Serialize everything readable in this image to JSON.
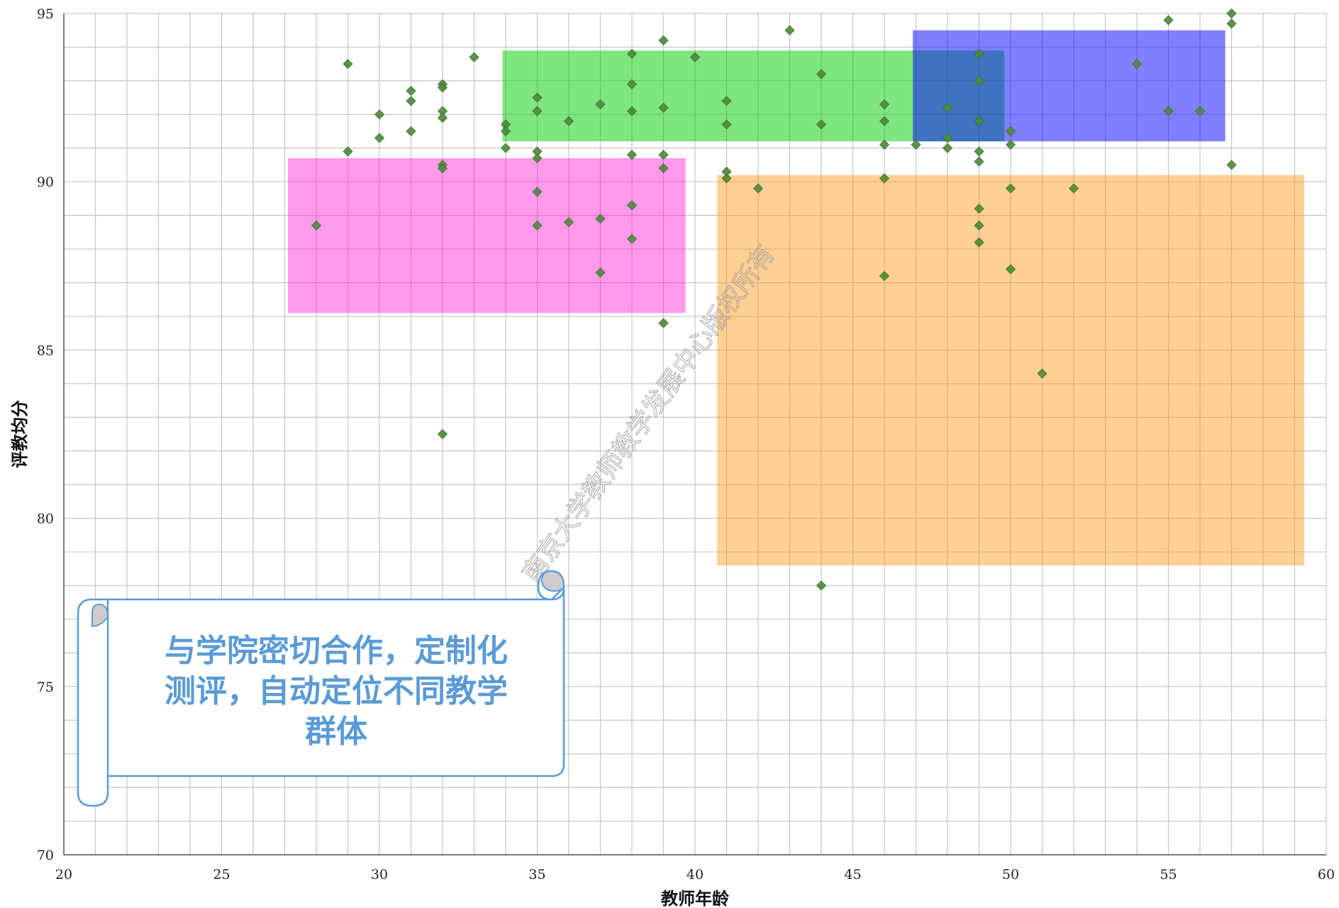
{
  "chart_data": {
    "type": "scatter",
    "title": "",
    "xlabel": "教师年龄",
    "ylabel": "评教均分",
    "xlim": [
      20,
      60
    ],
    "ylim": [
      70,
      95
    ],
    "x_ticks": [
      20,
      25,
      30,
      35,
      40,
      45,
      50,
      55,
      60
    ],
    "y_ticks": [
      70,
      75,
      80,
      85,
      90,
      95
    ],
    "x_minor_step": 1,
    "y_minor_step": 1,
    "grid": true,
    "marker": "diamond",
    "marker_color": "#4f8a3c",
    "points": [
      [
        28,
        88.7
      ],
      [
        29,
        93.5
      ],
      [
        29,
        90.9
      ],
      [
        30,
        92.0
      ],
      [
        30,
        91.3
      ],
      [
        31,
        92.7
      ],
      [
        31,
        92.4
      ],
      [
        31,
        91.5
      ],
      [
        32,
        92.9
      ],
      [
        32,
        92.8
      ],
      [
        32,
        92.1
      ],
      [
        32,
        91.9
      ],
      [
        32,
        90.5
      ],
      [
        32,
        90.4
      ],
      [
        32,
        82.5
      ],
      [
        33,
        93.7
      ],
      [
        34,
        91.7
      ],
      [
        34,
        91.5
      ],
      [
        34,
        91.0
      ],
      [
        35,
        92.5
      ],
      [
        35,
        92.1
      ],
      [
        35,
        90.9
      ],
      [
        35,
        90.7
      ],
      [
        35,
        89.7
      ],
      [
        35,
        88.7
      ],
      [
        36,
        91.8
      ],
      [
        36,
        88.8
      ],
      [
        37,
        92.3
      ],
      [
        37,
        88.9
      ],
      [
        37,
        87.3
      ],
      [
        38,
        93.8
      ],
      [
        38,
        92.9
      ],
      [
        38,
        92.1
      ],
      [
        38,
        90.8
      ],
      [
        38,
        89.3
      ],
      [
        38,
        88.3
      ],
      [
        39,
        94.2
      ],
      [
        39,
        92.2
      ],
      [
        39,
        90.8
      ],
      [
        39,
        90.4
      ],
      [
        39,
        85.8
      ],
      [
        40,
        93.7
      ],
      [
        41,
        92.4
      ],
      [
        41,
        91.7
      ],
      [
        41,
        90.3
      ],
      [
        41,
        90.1
      ],
      [
        42,
        89.8
      ],
      [
        43,
        94.5
      ],
      [
        44,
        93.2
      ],
      [
        44,
        91.7
      ],
      [
        44,
        78.0
      ],
      [
        46,
        92.3
      ],
      [
        46,
        91.8
      ],
      [
        46,
        91.1
      ],
      [
        46,
        90.1
      ],
      [
        46,
        87.2
      ],
      [
        47,
        91.1
      ],
      [
        48,
        92.2
      ],
      [
        48,
        91.3
      ],
      [
        48,
        91.0
      ],
      [
        49,
        93.8
      ],
      [
        49,
        93.0
      ],
      [
        49,
        91.8
      ],
      [
        49,
        90.9
      ],
      [
        49,
        90.6
      ],
      [
        49,
        89.2
      ],
      [
        49,
        88.7
      ],
      [
        49,
        88.2
      ],
      [
        50,
        91.5
      ],
      [
        50,
        91.1
      ],
      [
        50,
        89.8
      ],
      [
        50,
        87.4
      ],
      [
        51,
        84.3
      ],
      [
        52,
        89.8
      ],
      [
        54,
        93.5
      ],
      [
        55,
        94.8
      ],
      [
        55,
        92.1
      ],
      [
        56,
        92.1
      ],
      [
        57,
        95.0
      ],
      [
        57,
        94.7
      ],
      [
        57,
        90.5
      ]
    ],
    "highlight_regions": [
      {
        "color": "#ff00cc",
        "opacity": 0.4,
        "x": [
          27.1,
          39.7
        ],
        "y": [
          86.1,
          90.7
        ]
      },
      {
        "color": "#00cc00",
        "opacity": 0.5,
        "x": [
          33.9,
          49.8
        ],
        "y": [
          91.2,
          93.9
        ]
      },
      {
        "color": "#0000ff",
        "opacity": 0.5,
        "x": [
          46.9,
          56.8
        ],
        "y": [
          91.2,
          94.5
        ]
      },
      {
        "color": "#ff8c00",
        "opacity": 0.42,
        "x": [
          40.7,
          59.3
        ],
        "y": [
          78.6,
          90.2
        ]
      }
    ]
  },
  "watermark": "南京大学教师教学发展中心版权所有",
  "callout": {
    "lines": [
      "与学院密切合作，定制化",
      "测评，自动定位不同教学",
      "群体"
    ],
    "border_color": "#5b9bd5"
  }
}
